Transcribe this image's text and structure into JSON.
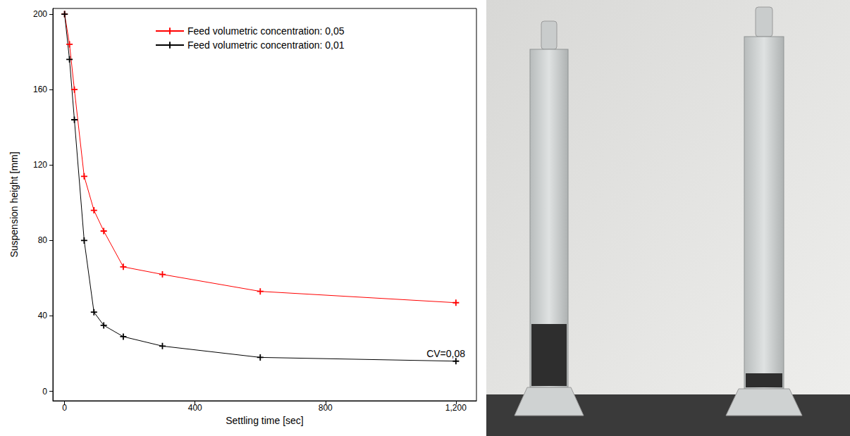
{
  "chart_data": {
    "type": "line",
    "x_label": "Settling time [sec]",
    "y_label": "Suspension height [mm]",
    "x": [
      0,
      15,
      30,
      60,
      90,
      120,
      180,
      300,
      600,
      1200
    ],
    "series": [
      {
        "name": "Feed volumetric concentration: 0,05",
        "color": "#ff0000",
        "marker": "plus",
        "line_style": "solid",
        "values": [
          200,
          184,
          160,
          114,
          96,
          85,
          66,
          62,
          53,
          47
        ]
      },
      {
        "name": "Feed volumetric concentration: 0,01",
        "color": "#000000",
        "marker": "plus",
        "line_style": "solid",
        "values": [
          200,
          176,
          144,
          80,
          42,
          35,
          29,
          24,
          18,
          16
        ]
      }
    ],
    "xlim": [
      -36,
      1263
    ],
    "xticks": [
      0,
      400,
      800,
      1200
    ],
    "ylim": [
      -5,
      203
    ],
    "yticks": [
      0,
      40,
      80,
      120,
      160,
      200
    ],
    "annotations": [
      {
        "text": "CV=0,08"
      }
    ],
    "legend": "upper right",
    "grid": false
  }
}
